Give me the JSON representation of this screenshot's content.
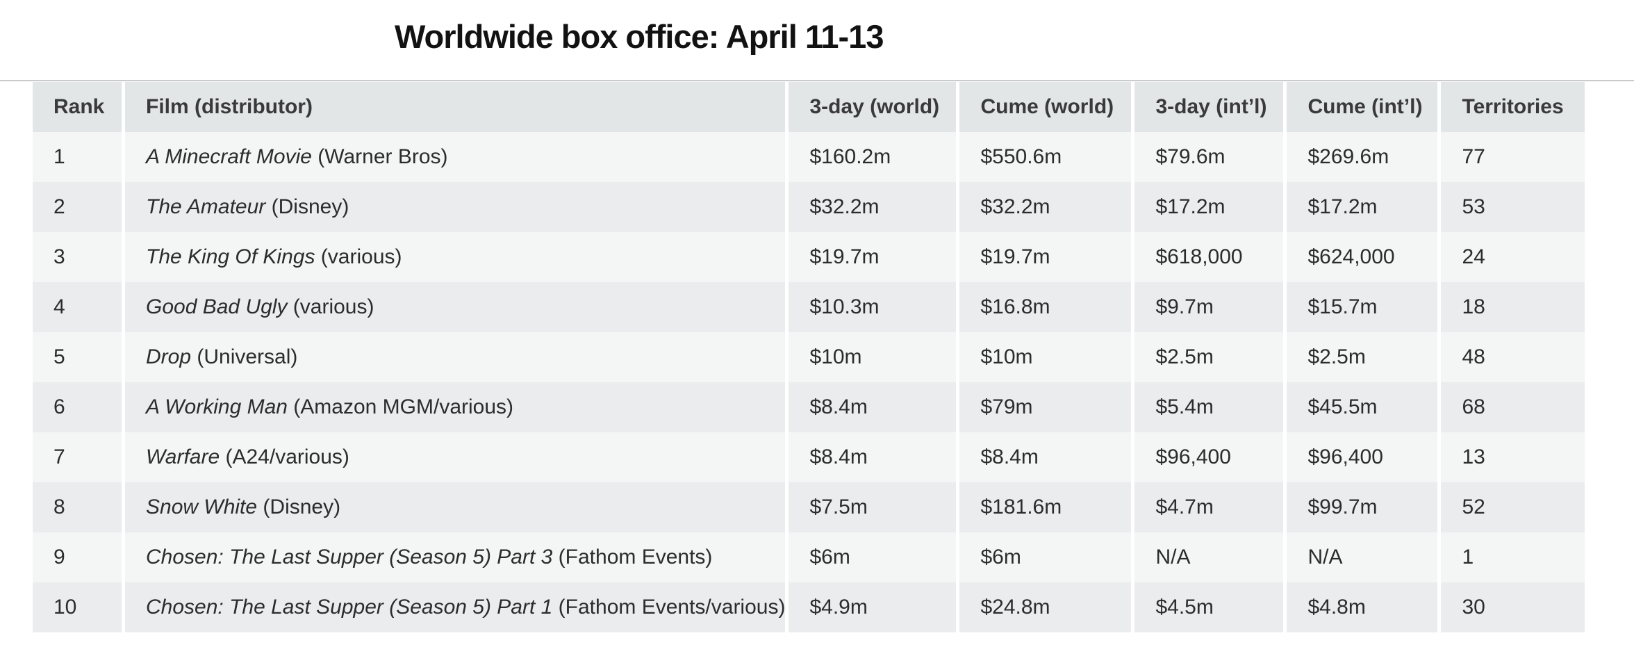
{
  "title": "Worldwide box office: April 11-13",
  "table": {
    "headers": {
      "rank": "Rank",
      "film": "Film (distributor)",
      "three_day_world": "3-day (world)",
      "cume_world": "Cume (world)",
      "three_day_intl": "3-day (int’l)",
      "cume_intl": "Cume (int’l)",
      "territories": "Territories"
    },
    "rows": [
      {
        "rank": "1",
        "title": "A Minecraft Movie",
        "distributor": " (Warner Bros)",
        "three_day_world": "$160.2m",
        "cume_world": "$550.6m",
        "three_day_intl": "$79.6m",
        "cume_intl": "$269.6m",
        "territories": "77"
      },
      {
        "rank": "2",
        "title": "The Amateur",
        "distributor": " (Disney)",
        "three_day_world": "$32.2m",
        "cume_world": "$32.2m",
        "three_day_intl": "$17.2m",
        "cume_intl": "$17.2m",
        "territories": "53"
      },
      {
        "rank": "3",
        "title": "The King Of Kings",
        "distributor": " (various)",
        "three_day_world": "$19.7m",
        "cume_world": "$19.7m",
        "three_day_intl": "$618,000",
        "cume_intl": "$624,000",
        "territories": "24"
      },
      {
        "rank": "4",
        "title": "Good Bad Ugly",
        "distributor": " (various)",
        "three_day_world": "$10.3m",
        "cume_world": "$16.8m",
        "three_day_intl": "$9.7m",
        "cume_intl": "$15.7m",
        "territories": "18"
      },
      {
        "rank": "5",
        "title": "Drop",
        "distributor": " (Universal)",
        "three_day_world": "$10m",
        "cume_world": "$10m",
        "three_day_intl": "$2.5m",
        "cume_intl": "$2.5m",
        "territories": "48"
      },
      {
        "rank": "6",
        "title": "A Working Man",
        "distributor": " (Amazon MGM/various)",
        "three_day_world": "$8.4m",
        "cume_world": "$79m",
        "three_day_intl": "$5.4m",
        "cume_intl": "$45.5m",
        "territories": "68"
      },
      {
        "rank": "7",
        "title": "Warfare",
        "distributor": " (A24/various)",
        "three_day_world": "$8.4m",
        "cume_world": "$8.4m",
        "three_day_intl": "$96,400",
        "cume_intl": "$96,400",
        "territories": "13"
      },
      {
        "rank": "8",
        "title": "Snow White",
        "distributor": " (Disney)",
        "three_day_world": "$7.5m",
        "cume_world": "$181.6m",
        "three_day_intl": "$4.7m",
        "cume_intl": "$99.7m",
        "territories": "52"
      },
      {
        "rank": "9",
        "title": "Chosen: The Last Supper (Season 5) Part 3 ",
        "distributor": " (Fathom Events)",
        "three_day_world": "$6m",
        "cume_world": "$6m",
        "three_day_intl": "N/A",
        "cume_intl": "N/A",
        "territories": "1"
      },
      {
        "rank": "10",
        "title": "Chosen: The Last Supper (Season 5) Part 1",
        "distributor": " (Fathom Events/various)",
        "three_day_world": "$4.9m",
        "cume_world": "$24.8m",
        "three_day_intl": "$4.5m",
        "cume_intl": "$4.8m",
        "territories": "30"
      }
    ]
  }
}
